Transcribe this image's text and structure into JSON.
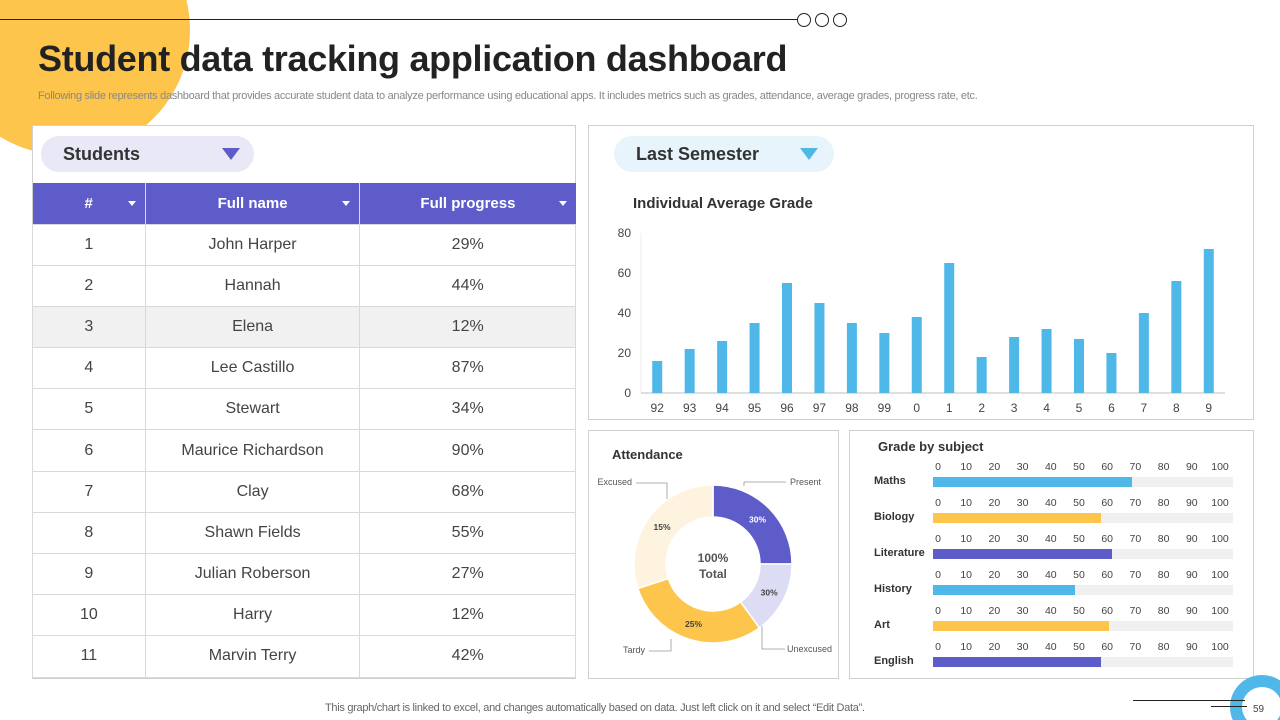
{
  "header": {
    "title": "Student data tracking application dashboard",
    "subtitle": "Following slide represents dashboard that provides accurate student data to analyze  performance using educational apps. It includes metrics such as grades, attendance, average grades, progress rate, etc."
  },
  "colors": {
    "purple": "#5E5CC9",
    "blue": "#4FB8E9",
    "yellow": "#FDC54B",
    "light_purple": "#DCDCF4",
    "cream": "#FDF3DE",
    "track": "#F0F0F0"
  },
  "students": {
    "dropdown_label": "Students",
    "columns": [
      "#",
      "Full name",
      "Full progress"
    ],
    "rows": [
      {
        "num": "1",
        "name": "John Harper",
        "progress": "29%"
      },
      {
        "num": "2",
        "name": "Hannah",
        "progress": "44%"
      },
      {
        "num": "3",
        "name": "Elena",
        "progress": "12%"
      },
      {
        "num": "4",
        "name": "Lee Castillo",
        "progress": "87%"
      },
      {
        "num": "5",
        "name": "Stewart",
        "progress": "34%"
      },
      {
        "num": "6",
        "name": "Maurice Richardson",
        "progress": "90%"
      },
      {
        "num": "7",
        "name": "Clay",
        "progress": "68%"
      },
      {
        "num": "8",
        "name": "Shawn Fields",
        "progress": "55%"
      },
      {
        "num": "9",
        "name": "Julian Roberson",
        "progress": "27%"
      },
      {
        "num": "10",
        "name": "Harry",
        "progress": "12%"
      },
      {
        "num": "11",
        "name": "Marvin Terry",
        "progress": "42%"
      }
    ]
  },
  "semester": {
    "dropdown_label": "Last Semester"
  },
  "chart_data": [
    {
      "type": "bar",
      "title": "Individual Average Grade",
      "categories": [
        "92",
        "93",
        "94",
        "95",
        "96",
        "97",
        "98",
        "99",
        "0",
        "1",
        "2",
        "3",
        "4",
        "5",
        "6",
        "7",
        "8",
        "9"
      ],
      "values": [
        16,
        22,
        26,
        35,
        55,
        45,
        35,
        30,
        38,
        65,
        18,
        28,
        32,
        27,
        20,
        40,
        56,
        72
      ],
      "ylim": [
        0,
        80
      ],
      "yticks": [
        0,
        20,
        40,
        60,
        80
      ],
      "xlabel": "",
      "ylabel": "",
      "grid": false,
      "color": "#4FB8E9"
    },
    {
      "type": "pie",
      "title": "Attendance",
      "center_label": [
        "100%",
        "Total"
      ],
      "slices": [
        {
          "name": "Present",
          "label": "30%",
          "value": 30,
          "color": "#5E5CC9"
        },
        {
          "name": "Unexcused",
          "label": "30%",
          "value": 30,
          "color": "#DCDCF4"
        },
        {
          "name": "Tardy",
          "label": "25%",
          "value": 25,
          "color": "#FDC54B"
        },
        {
          "name": "Excused",
          "label": "15%",
          "value": 15,
          "color": "#FDF3DE"
        }
      ]
    },
    {
      "type": "bar",
      "orientation": "horizontal",
      "title": "Grade by subject",
      "xlim": [
        0,
        100
      ],
      "xticks": [
        0,
        10,
        20,
        30,
        40,
        50,
        60,
        70,
        80,
        90,
        100
      ],
      "categories": [
        "Maths",
        "Biology",
        "Literature",
        "History",
        "Art",
        "English"
      ],
      "values": [
        69,
        58,
        62,
        49,
        61,
        58
      ],
      "colors": [
        "#4FB8E9",
        "#FDC54B",
        "#5E5CC9",
        "#4FB8E9",
        "#FDC54B",
        "#5E5CC9"
      ]
    }
  ],
  "footer": {
    "note": "This graph/chart is linked to excel,  and changes automatically based on data. Just left click on it and select “Edit Data”.",
    "page_number": "59"
  }
}
